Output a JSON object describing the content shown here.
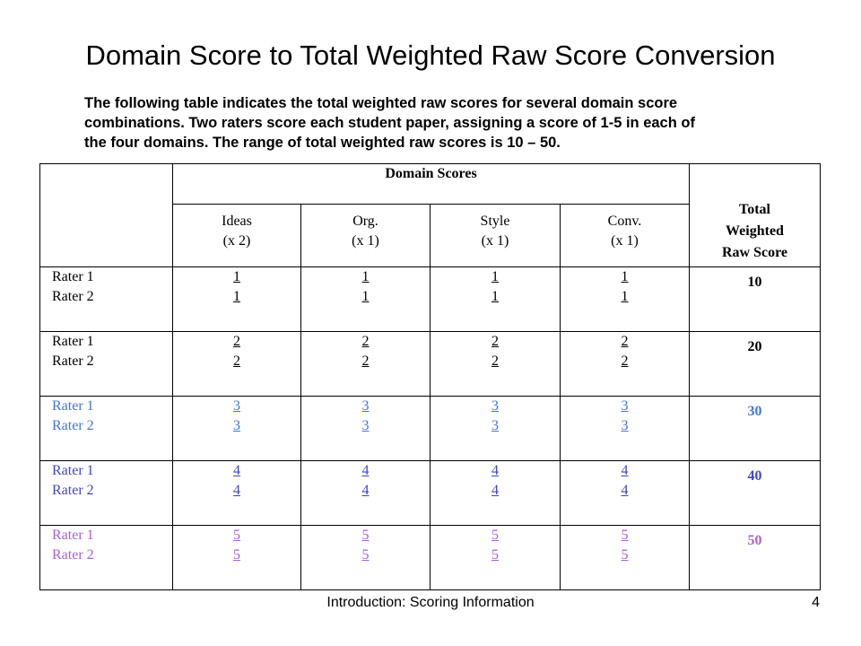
{
  "title": "Domain Score to Total Weighted Raw Score Conversion",
  "intro_lines": [
    "The following table indicates the total weighted raw scores for several domain score",
    "combinations. Two raters score each student paper, assigning a score of 1-5 in each of",
    "the four domains. The range of total weighted raw scores is 10 – 50."
  ],
  "table": {
    "group_header": "Domain Scores",
    "total_header": [
      "Total",
      "Weighted",
      "Raw Score"
    ],
    "columns": [
      {
        "name": "Ideas",
        "weight": "(x 2)"
      },
      {
        "name": "Org.",
        "weight": "(x 1)"
      },
      {
        "name": "Style",
        "weight": "(x 1)"
      },
      {
        "name": "Conv.",
        "weight": "(x 1)"
      }
    ],
    "rows": [
      {
        "raters": [
          "Rater 1",
          "Rater 2"
        ],
        "score": [
          "1",
          "1"
        ],
        "total": "10",
        "color": "#000000"
      },
      {
        "raters": [
          "Rater 1",
          "Rater 2"
        ],
        "score": [
          "2",
          "2"
        ],
        "total": "20",
        "color": "#000000"
      },
      {
        "raters": [
          "Rater 1",
          "Rater 2"
        ],
        "score": [
          "3",
          "3"
        ],
        "total": "30",
        "color": "#4472e6"
      },
      {
        "raters": [
          "Rater 1",
          "Rater 2"
        ],
        "score": [
          "4",
          "4"
        ],
        "total": "40",
        "color": "#3f45c8"
      },
      {
        "raters": [
          "Rater 1",
          "Rater 2"
        ],
        "score": [
          "5",
          "5"
        ],
        "total": "50",
        "color": "#a45fe0"
      }
    ]
  },
  "footer": {
    "text": "Introduction: Scoring Information",
    "page": "4"
  }
}
